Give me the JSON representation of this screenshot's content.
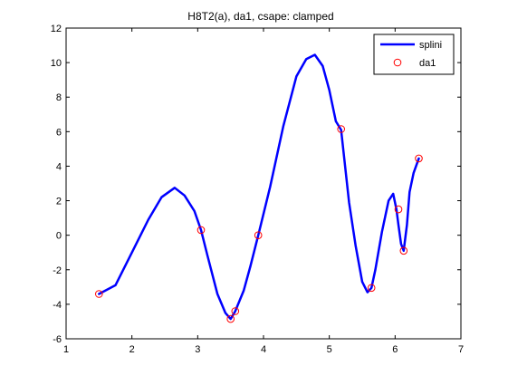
{
  "chart_data": {
    "type": "line",
    "title": "H8T2(a), da1, csape: clamped",
    "xlabel": "",
    "ylabel": "",
    "xlim": [
      1,
      7
    ],
    "ylim": [
      -6,
      12
    ],
    "xticks": [
      1,
      2,
      3,
      4,
      5,
      6,
      7
    ],
    "yticks": [
      -6,
      -4,
      -2,
      0,
      2,
      4,
      6,
      8,
      10,
      12
    ],
    "grid": false,
    "legend": {
      "position": "top-right",
      "entries": [
        "splini",
        "da1"
      ]
    },
    "series": [
      {
        "name": "splini",
        "style": "line",
        "color": "#0000ff",
        "x": [
          1.5,
          1.75,
          2.0,
          2.25,
          2.45,
          2.65,
          2.8,
          2.95,
          3.05,
          3.15,
          3.3,
          3.42,
          3.5,
          3.57,
          3.7,
          3.8,
          3.92,
          4.1,
          4.3,
          4.5,
          4.65,
          4.78,
          4.9,
          5.0,
          5.1,
          5.18,
          5.3,
          5.4,
          5.5,
          5.58,
          5.64,
          5.7,
          5.8,
          5.9,
          5.97,
          6.02,
          6.05,
          6.09,
          6.13,
          6.18,
          6.22,
          6.28,
          6.36
        ],
        "y": [
          -3.4,
          -2.9,
          -1.0,
          0.9,
          2.2,
          2.75,
          2.3,
          1.4,
          0.3,
          -1.2,
          -3.4,
          -4.5,
          -4.85,
          -4.4,
          -3.2,
          -1.8,
          0.0,
          2.8,
          6.3,
          9.2,
          10.2,
          10.45,
          9.8,
          8.4,
          6.6,
          6.1,
          1.9,
          -0.6,
          -2.7,
          -3.3,
          -3.05,
          -2.0,
          0.2,
          2.0,
          2.4,
          1.5,
          0.6,
          -0.5,
          -0.9,
          0.6,
          2.5,
          3.6,
          4.45
        ]
      },
      {
        "name": "da1",
        "style": "markers",
        "marker": "o",
        "color": "#ff0000",
        "x": [
          1.5,
          3.05,
          3.5,
          3.57,
          3.92,
          5.18,
          5.64,
          6.05,
          6.13,
          6.36
        ],
        "y": [
          -3.4,
          0.3,
          -4.85,
          -4.4,
          0.0,
          6.15,
          -3.05,
          1.5,
          -0.9,
          4.45
        ]
      }
    ]
  }
}
